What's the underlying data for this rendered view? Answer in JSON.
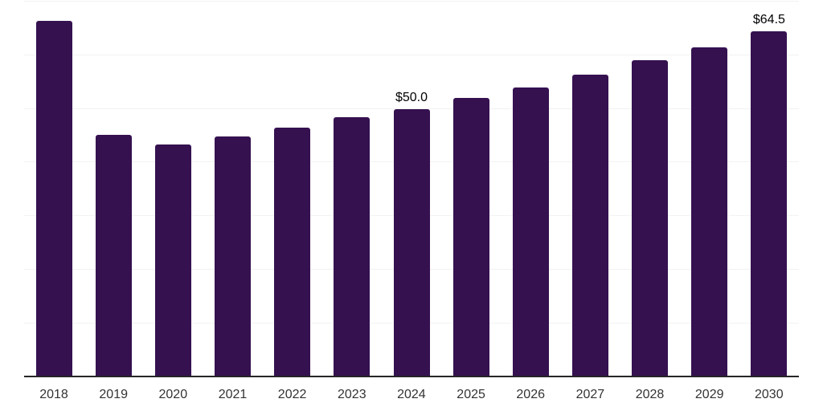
{
  "chart_data": {
    "type": "bar",
    "title": "",
    "xlabel": "",
    "ylabel": "",
    "categories": [
      "2018",
      "2019",
      "2020",
      "2021",
      "2022",
      "2023",
      "2024",
      "2025",
      "2026",
      "2027",
      "2028",
      "2029",
      "2030"
    ],
    "values": [
      66.3,
      45.1,
      43.3,
      44.9,
      46.5,
      48.4,
      50.0,
      52.0,
      54.0,
      56.4,
      59.0,
      61.4,
      64.5
    ],
    "data_labels": {
      "2024": "$50.0",
      "2030": "$64.5"
    },
    "ylim": [
      0,
      70.25
    ],
    "y_gridlines": [
      10,
      20,
      30,
      40,
      50,
      60,
      70
    ],
    "grid": "horizontal",
    "legend": "none",
    "y_axis_labels_visible": false,
    "colors": {
      "bar": "#351150",
      "axis": "#262626",
      "gridline": "#f2f2f2",
      "tick_label": "#333333",
      "data_label": "#000000",
      "background": "#ffffff"
    }
  }
}
